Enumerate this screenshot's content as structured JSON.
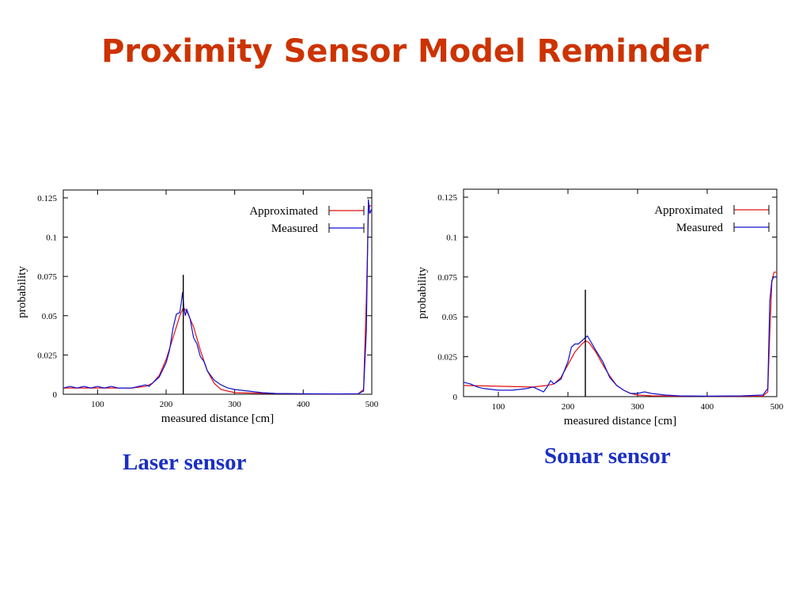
{
  "slide": {
    "title": "Proximity Sensor Model Reminder",
    "title_color": "#cc3300",
    "caption_color": "#1a2fc4"
  },
  "series_colors": {
    "Approximated": "#e01010",
    "Measured": "#1010d0"
  },
  "chart_data": [
    {
      "type": "line",
      "caption": "Laser sensor",
      "xlabel": "measured distance [cm]",
      "ylabel": "probability",
      "xlim": [
        50,
        500
      ],
      "ylim": [
        0,
        0.13
      ],
      "xticks": [
        100,
        200,
        300,
        400,
        500
      ],
      "xtick_labels": [
        "100",
        "200",
        "300",
        "400",
        "500"
      ],
      "yticks": [
        0,
        0.025,
        0.05,
        0.075,
        0.1,
        0.125
      ],
      "ytick_labels": [
        "0",
        "0.025",
        "0.05",
        "0.075",
        "0.1",
        "0.125"
      ],
      "grid": false,
      "legend_position": "top-right",
      "vline": {
        "x": 225,
        "y": 0.076
      },
      "series": [
        {
          "name": "Approximated",
          "x": [
            50,
            150,
            170,
            180,
            190,
            200,
            210,
            220,
            225,
            230,
            240,
            250,
            260,
            270,
            280,
            300,
            350,
            400,
            480,
            488,
            492,
            495,
            497,
            500
          ],
          "y": [
            0.004,
            0.004,
            0.005,
            0.007,
            0.012,
            0.022,
            0.036,
            0.05,
            0.055,
            0.053,
            0.043,
            0.028,
            0.015,
            0.007,
            0.003,
            0.001,
            0.0005,
            0.0002,
            0.0002,
            0.003,
            0.06,
            0.115,
            0.12,
            0.12
          ]
        },
        {
          "name": "Measured",
          "x": [
            50,
            60,
            70,
            80,
            90,
            100,
            110,
            120,
            130,
            140,
            150,
            160,
            170,
            175,
            180,
            190,
            200,
            205,
            210,
            215,
            220,
            222,
            224,
            226,
            228,
            230,
            235,
            240,
            245,
            250,
            255,
            260,
            270,
            280,
            290,
            300,
            320,
            340,
            360,
            400,
            450,
            480,
            488,
            492,
            495,
            497,
            500
          ],
          "y": [
            0.004,
            0.005,
            0.004,
            0.005,
            0.004,
            0.005,
            0.004,
            0.005,
            0.004,
            0.004,
            0.004,
            0.005,
            0.006,
            0.005,
            0.007,
            0.011,
            0.02,
            0.028,
            0.042,
            0.051,
            0.052,
            0.058,
            0.065,
            0.055,
            0.05,
            0.054,
            0.048,
            0.036,
            0.032,
            0.024,
            0.021,
            0.015,
            0.009,
            0.006,
            0.004,
            0.003,
            0.002,
            0.001,
            0.0005,
            0.0003,
            0.0002,
            0.0003,
            0.002,
            0.04,
            0.124,
            0.115,
            0.118
          ]
        }
      ]
    },
    {
      "type": "line",
      "caption": "Sonar sensor",
      "xlabel": "measured distance [cm]",
      "ylabel": "probability",
      "xlim": [
        50,
        500
      ],
      "ylim": [
        0,
        0.13
      ],
      "xticks": [
        100,
        200,
        300,
        400,
        500
      ],
      "xtick_labels": [
        "100",
        "200",
        "300",
        "400",
        "500"
      ],
      "yticks": [
        0,
        0.025,
        0.05,
        0.075,
        0.1,
        0.125
      ],
      "ytick_labels": [
        "0",
        "0.025",
        "0.05",
        "0.075",
        "0.1",
        "0.125"
      ],
      "grid": false,
      "legend_position": "top-right",
      "vline": {
        "x": 225,
        "y": 0.067
      },
      "series": [
        {
          "name": "Approximated",
          "x": [
            50,
            100,
            150,
            170,
            180,
            190,
            200,
            210,
            220,
            225,
            230,
            240,
            250,
            260,
            270,
            280,
            290,
            300,
            320,
            350,
            400,
            480,
            487,
            490,
            493,
            496,
            500
          ],
          "y": [
            0.007,
            0.0065,
            0.006,
            0.007,
            0.008,
            0.012,
            0.02,
            0.028,
            0.033,
            0.035,
            0.034,
            0.028,
            0.02,
            0.013,
            0.007,
            0.004,
            0.002,
            0.001,
            0.0005,
            0.0003,
            0.0002,
            0.0003,
            0.003,
            0.04,
            0.072,
            0.078,
            0.078
          ]
        },
        {
          "name": "Measured",
          "x": [
            50,
            60,
            70,
            80,
            100,
            120,
            140,
            150,
            160,
            165,
            170,
            175,
            180,
            190,
            200,
            205,
            210,
            215,
            220,
            225,
            228,
            232,
            240,
            250,
            260,
            270,
            280,
            290,
            300,
            310,
            320,
            340,
            360,
            400,
            450,
            480,
            487,
            490,
            493,
            496,
            500
          ],
          "y": [
            0.009,
            0.008,
            0.006,
            0.005,
            0.004,
            0.004,
            0.005,
            0.006,
            0.004,
            0.003,
            0.006,
            0.01,
            0.008,
            0.011,
            0.022,
            0.031,
            0.033,
            0.033,
            0.035,
            0.037,
            0.038,
            0.035,
            0.029,
            0.022,
            0.012,
            0.007,
            0.004,
            0.002,
            0.002,
            0.003,
            0.002,
            0.001,
            0.0005,
            0.0003,
            0.0005,
            0.001,
            0.005,
            0.06,
            0.073,
            0.075,
            0.075
          ]
        }
      ]
    }
  ]
}
